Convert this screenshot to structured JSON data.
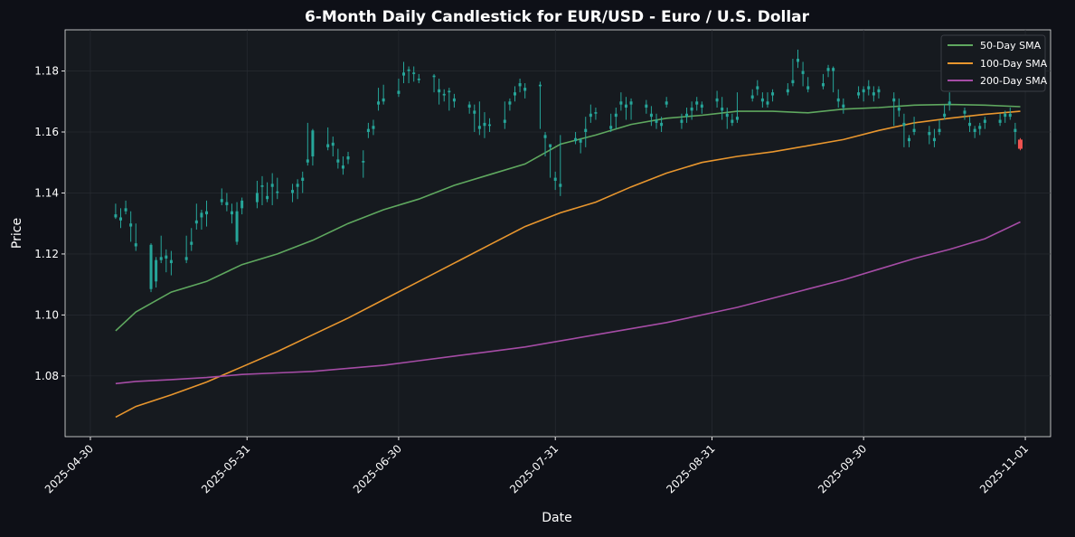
{
  "chart_data": {
    "type": "candlestick",
    "title": "6-Month Daily Candlestick for EUR/USD - Euro / U.S. Dollar",
    "xlabel": "Date",
    "ylabel": "Price",
    "xlim": [
      "2025-04-25",
      "2025-11-06"
    ],
    "ylim": [
      1.0601,
      1.1935
    ],
    "grid": true,
    "legend_position": "top-right",
    "x_ticks": [
      "2025-04-30",
      "2025-05-31",
      "2025-06-30",
      "2025-07-31",
      "2025-08-31",
      "2025-09-30",
      "2025-11-01"
    ],
    "y_ticks": [
      "1.08",
      "1.10",
      "1.12",
      "1.14",
      "1.16",
      "1.18"
    ],
    "colors": {
      "up": "#26a69a",
      "down": "#ef5350",
      "background": "#0e1017",
      "axes": "#161a1f"
    },
    "candles": [
      [
        "2025-05-05",
        1.132,
        1.1365,
        1.1315,
        1.133
      ],
      [
        "2025-05-06",
        1.131,
        1.135,
        1.1285,
        1.132
      ],
      [
        "2025-05-07",
        1.134,
        1.1375,
        1.133,
        1.135
      ],
      [
        "2025-05-08",
        1.129,
        1.134,
        1.124,
        1.13
      ],
      [
        "2025-05-09",
        1.1225,
        1.13,
        1.121,
        1.1235
      ],
      [
        "2025-05-12",
        1.1085,
        1.1235,
        1.1075,
        1.123
      ],
      [
        "2025-05-13",
        1.111,
        1.119,
        1.109,
        1.118
      ],
      [
        "2025-05-14",
        1.118,
        1.126,
        1.117,
        1.119
      ],
      [
        "2025-05-15",
        1.1185,
        1.1215,
        1.114,
        1.1195
      ],
      [
        "2025-05-16",
        1.117,
        1.121,
        1.113,
        1.118
      ],
      [
        "2025-05-19",
        1.118,
        1.126,
        1.117,
        1.119
      ],
      [
        "2025-05-20",
        1.123,
        1.1285,
        1.121,
        1.124
      ],
      [
        "2025-05-21",
        1.13,
        1.1365,
        1.128,
        1.131
      ],
      [
        "2025-05-22",
        1.132,
        1.1345,
        1.128,
        1.1335
      ],
      [
        "2025-05-23",
        1.133,
        1.1375,
        1.129,
        1.134
      ],
      [
        "2025-05-26",
        1.137,
        1.1415,
        1.136,
        1.138
      ],
      [
        "2025-05-27",
        1.136,
        1.14,
        1.134,
        1.137
      ],
      [
        "2025-05-28",
        1.133,
        1.1365,
        1.13,
        1.134
      ],
      [
        "2025-05-29",
        1.124,
        1.137,
        1.123,
        1.134
      ],
      [
        "2025-05-30",
        1.135,
        1.1385,
        1.133,
        1.1375
      ],
      [
        "2025-06-02",
        1.137,
        1.144,
        1.135,
        1.14
      ],
      [
        "2025-06-03",
        1.142,
        1.1455,
        1.136,
        1.1425
      ],
      [
        "2025-06-04",
        1.138,
        1.1435,
        1.137,
        1.139
      ],
      [
        "2025-06-05",
        1.142,
        1.1465,
        1.136,
        1.143
      ],
      [
        "2025-06-06",
        1.14,
        1.145,
        1.138,
        1.1405
      ],
      [
        "2025-06-09",
        1.14,
        1.143,
        1.137,
        1.141
      ],
      [
        "2025-06-10",
        1.142,
        1.1445,
        1.138,
        1.143
      ],
      [
        "2025-06-11",
        1.144,
        1.147,
        1.14,
        1.145
      ],
      [
        "2025-06-12",
        1.15,
        1.163,
        1.149,
        1.151
      ],
      [
        "2025-06-13",
        1.152,
        1.161,
        1.149,
        1.1605
      ],
      [
        "2025-06-16",
        1.155,
        1.1615,
        1.154,
        1.156
      ],
      [
        "2025-06-17",
        1.1555,
        1.1585,
        1.152,
        1.1565
      ],
      [
        "2025-06-18",
        1.15,
        1.1545,
        1.148,
        1.151
      ],
      [
        "2025-06-19",
        1.148,
        1.152,
        1.146,
        1.149
      ],
      [
        "2025-06-20",
        1.151,
        1.1535,
        1.1495,
        1.152
      ],
      [
        "2025-06-23",
        1.15,
        1.154,
        1.145,
        1.1505
      ],
      [
        "2025-06-24",
        1.16,
        1.163,
        1.158,
        1.161
      ],
      [
        "2025-06-25",
        1.161,
        1.164,
        1.159,
        1.162
      ],
      [
        "2025-06-26",
        1.169,
        1.1745,
        1.167,
        1.17
      ],
      [
        "2025-06-27",
        1.17,
        1.1755,
        1.169,
        1.171
      ],
      [
        "2025-06-30",
        1.1725,
        1.1775,
        1.1715,
        1.1735
      ],
      [
        "2025-07-01",
        1.1785,
        1.183,
        1.176,
        1.1795
      ],
      [
        "2025-07-02",
        1.18,
        1.1815,
        1.176,
        1.1805
      ],
      [
        "2025-07-03",
        1.179,
        1.1815,
        1.1765,
        1.1795
      ],
      [
        "2025-07-04",
        1.177,
        1.179,
        1.176,
        1.1775
      ],
      [
        "2025-07-07",
        1.178,
        1.179,
        1.173,
        1.1785
      ],
      [
        "2025-07-08",
        1.173,
        1.1775,
        1.169,
        1.174
      ],
      [
        "2025-07-09",
        1.172,
        1.174,
        1.17,
        1.1725
      ],
      [
        "2025-07-10",
        1.173,
        1.1745,
        1.167,
        1.1735
      ],
      [
        "2025-07-11",
        1.17,
        1.1725,
        1.168,
        1.171
      ],
      [
        "2025-07-14",
        1.168,
        1.17,
        1.166,
        1.169
      ],
      [
        "2025-07-15",
        1.166,
        1.169,
        1.16,
        1.167
      ],
      [
        "2025-07-16",
        1.161,
        1.17,
        1.159,
        1.162
      ],
      [
        "2025-07-17",
        1.162,
        1.1665,
        1.158,
        1.163
      ],
      [
        "2025-07-18",
        1.162,
        1.1645,
        1.16,
        1.1625
      ],
      [
        "2025-07-21",
        1.163,
        1.17,
        1.161,
        1.164
      ],
      [
        "2025-07-22",
        1.169,
        1.171,
        1.167,
        1.17
      ],
      [
        "2025-07-23",
        1.172,
        1.175,
        1.17,
        1.173
      ],
      [
        "2025-07-24",
        1.175,
        1.1775,
        1.173,
        1.176
      ],
      [
        "2025-07-25",
        1.1735,
        1.176,
        1.171,
        1.1745
      ],
      [
        "2025-07-28",
        1.175,
        1.1765,
        1.161,
        1.1755
      ],
      [
        "2025-07-29",
        1.158,
        1.16,
        1.152,
        1.159
      ],
      [
        "2025-07-30",
        1.155,
        1.156,
        1.145,
        1.156
      ],
      [
        "2025-07-31",
        1.144,
        1.147,
        1.141,
        1.145
      ],
      [
        "2025-08-01",
        1.142,
        1.159,
        1.139,
        1.143
      ],
      [
        "2025-08-04",
        1.157,
        1.16,
        1.156,
        1.158
      ],
      [
        "2025-08-05",
        1.1565,
        1.158,
        1.153,
        1.1575
      ],
      [
        "2025-08-06",
        1.16,
        1.165,
        1.155,
        1.161
      ],
      [
        "2025-08-07",
        1.165,
        1.169,
        1.163,
        1.166
      ],
      [
        "2025-08-08",
        1.166,
        1.168,
        1.164,
        1.1665
      ],
      [
        "2025-08-11",
        1.161,
        1.166,
        1.16,
        1.162
      ],
      [
        "2025-08-12",
        1.165,
        1.168,
        1.161,
        1.166
      ],
      [
        "2025-08-13",
        1.169,
        1.173,
        1.167,
        1.17
      ],
      [
        "2025-08-14",
        1.168,
        1.1715,
        1.164,
        1.169
      ],
      [
        "2025-08-15",
        1.169,
        1.171,
        1.164,
        1.17
      ],
      [
        "2025-08-18",
        1.168,
        1.1705,
        1.166,
        1.169
      ],
      [
        "2025-08-19",
        1.165,
        1.1685,
        1.162,
        1.166
      ],
      [
        "2025-08-20",
        1.163,
        1.166,
        1.161,
        1.164
      ],
      [
        "2025-08-21",
        1.162,
        1.165,
        1.16,
        1.163
      ],
      [
        "2025-08-22",
        1.169,
        1.1715,
        1.168,
        1.17
      ],
      [
        "2025-08-25",
        1.163,
        1.166,
        1.161,
        1.164
      ],
      [
        "2025-08-26",
        1.165,
        1.168,
        1.163,
        1.166
      ],
      [
        "2025-08-27",
        1.167,
        1.17,
        1.164,
        1.168
      ],
      [
        "2025-08-28",
        1.169,
        1.1715,
        1.167,
        1.17
      ],
      [
        "2025-08-29",
        1.168,
        1.17,
        1.166,
        1.169
      ],
      [
        "2025-09-01",
        1.17,
        1.1735,
        1.168,
        1.171
      ],
      [
        "2025-09-02",
        1.167,
        1.1715,
        1.164,
        1.168
      ],
      [
        "2025-09-03",
        1.165,
        1.168,
        1.161,
        1.166
      ],
      [
        "2025-09-04",
        1.163,
        1.166,
        1.162,
        1.164
      ],
      [
        "2025-09-05",
        1.164,
        1.173,
        1.163,
        1.165
      ],
      [
        "2025-09-08",
        1.171,
        1.174,
        1.17,
        1.172
      ],
      [
        "2025-09-09",
        1.174,
        1.177,
        1.172,
        1.175
      ],
      [
        "2025-09-10",
        1.17,
        1.173,
        1.168,
        1.171
      ],
      [
        "2025-09-11",
        1.169,
        1.173,
        1.168,
        1.17
      ],
      [
        "2025-09-12",
        1.172,
        1.174,
        1.17,
        1.173
      ],
      [
        "2025-09-15",
        1.173,
        1.176,
        1.172,
        1.174
      ],
      [
        "2025-09-16",
        1.176,
        1.184,
        1.175,
        1.177
      ],
      [
        "2025-09-17",
        1.183,
        1.187,
        1.181,
        1.184
      ],
      [
        "2025-09-18",
        1.179,
        1.183,
        1.175,
        1.18
      ],
      [
        "2025-09-19",
        1.174,
        1.178,
        1.173,
        1.175
      ],
      [
        "2025-09-22",
        1.175,
        1.179,
        1.174,
        1.176
      ],
      [
        "2025-09-23",
        1.18,
        1.182,
        1.178,
        1.181
      ],
      [
        "2025-09-24",
        1.18,
        1.1815,
        1.173,
        1.181
      ],
      [
        "2025-09-25",
        1.17,
        1.174,
        1.168,
        1.171
      ],
      [
        "2025-09-26",
        1.168,
        1.171,
        1.166,
        1.169
      ],
      [
        "2025-09-29",
        1.172,
        1.175,
        1.171,
        1.173
      ],
      [
        "2025-09-30",
        1.173,
        1.175,
        1.17,
        1.174
      ],
      [
        "2025-10-01",
        1.174,
        1.177,
        1.172,
        1.175
      ],
      [
        "2025-10-02",
        1.172,
        1.175,
        1.17,
        1.173
      ],
      [
        "2025-10-03",
        1.173,
        1.175,
        1.171,
        1.174
      ],
      [
        "2025-10-06",
        1.17,
        1.173,
        1.162,
        1.171
      ],
      [
        "2025-10-07",
        1.167,
        1.171,
        1.165,
        1.168
      ],
      [
        "2025-10-08",
        1.162,
        1.166,
        1.155,
        1.163
      ],
      [
        "2025-10-09",
        1.157,
        1.159,
        1.155,
        1.158
      ],
      [
        "2025-10-10",
        1.16,
        1.165,
        1.159,
        1.161
      ],
      [
        "2025-10-13",
        1.159,
        1.162,
        1.156,
        1.16
      ],
      [
        "2025-10-14",
        1.157,
        1.161,
        1.155,
        1.158
      ],
      [
        "2025-10-15",
        1.16,
        1.164,
        1.159,
        1.161
      ],
      [
        "2025-10-16",
        1.165,
        1.169,
        1.164,
        1.166
      ],
      [
        "2025-10-17",
        1.169,
        1.173,
        1.167,
        1.17
      ],
      [
        "2025-10-20",
        1.166,
        1.168,
        1.164,
        1.167
      ],
      [
        "2025-10-21",
        1.162,
        1.165,
        1.16,
        1.163
      ],
      [
        "2025-10-22",
        1.16,
        1.162,
        1.158,
        1.161
      ],
      [
        "2025-10-23",
        1.161,
        1.163,
        1.159,
        1.162
      ],
      [
        "2025-10-24",
        1.163,
        1.165,
        1.161,
        1.164
      ],
      [
        "2025-10-27",
        1.163,
        1.166,
        1.162,
        1.164
      ],
      [
        "2025-10-28",
        1.165,
        1.167,
        1.163,
        1.166
      ],
      [
        "2025-10-29",
        1.165,
        1.168,
        1.164,
        1.166
      ],
      [
        "2025-10-30",
        1.16,
        1.163,
        1.156,
        1.161
      ],
      [
        "2025-10-31",
        1.1575,
        1.158,
        1.154,
        1.1545
      ]
    ],
    "series": [
      {
        "name": "50-Day SMA",
        "color": "#5fa85f",
        "dates": [
          "2025-05-05",
          "2025-05-09",
          "2025-05-16",
          "2025-05-23",
          "2025-05-30",
          "2025-06-06",
          "2025-06-13",
          "2025-06-20",
          "2025-06-27",
          "2025-07-04",
          "2025-07-11",
          "2025-07-18",
          "2025-07-25",
          "2025-08-01",
          "2025-08-08",
          "2025-08-15",
          "2025-08-22",
          "2025-08-29",
          "2025-09-05",
          "2025-09-12",
          "2025-09-19",
          "2025-09-26",
          "2025-10-03",
          "2025-10-10",
          "2025-10-17",
          "2025-10-24",
          "2025-10-31"
        ],
        "values": [
          1.0948,
          1.101,
          1.1075,
          1.111,
          1.1165,
          1.12,
          1.1245,
          1.13,
          1.1345,
          1.138,
          1.1425,
          1.146,
          1.1495,
          1.156,
          1.159,
          1.1625,
          1.1645,
          1.1655,
          1.1668,
          1.1668,
          1.1663,
          1.1675,
          1.168,
          1.1688,
          1.169,
          1.1688,
          1.1683
        ]
      },
      {
        "name": "100-Day SMA",
        "color": "#e8962e",
        "dates": [
          "2025-05-05",
          "2025-05-09",
          "2025-05-16",
          "2025-05-23",
          "2025-05-30",
          "2025-06-06",
          "2025-06-13",
          "2025-06-20",
          "2025-06-27",
          "2025-07-04",
          "2025-07-11",
          "2025-07-18",
          "2025-07-25",
          "2025-08-01",
          "2025-08-08",
          "2025-08-15",
          "2025-08-22",
          "2025-08-29",
          "2025-09-05",
          "2025-09-12",
          "2025-09-19",
          "2025-09-26",
          "2025-10-03",
          "2025-10-10",
          "2025-10-17",
          "2025-10-24",
          "2025-10-31"
        ],
        "values": [
          1.0665,
          1.07,
          1.0738,
          1.078,
          1.083,
          1.088,
          1.0935,
          1.099,
          1.105,
          1.111,
          1.117,
          1.123,
          1.129,
          1.1335,
          1.137,
          1.142,
          1.1465,
          1.15,
          1.152,
          1.1535,
          1.1555,
          1.1575,
          1.1605,
          1.163,
          1.1645,
          1.1658,
          1.1668
        ]
      },
      {
        "name": "200-Day SMA",
        "color": "#a54ca5",
        "dates": [
          "2025-05-05",
          "2025-05-09",
          "2025-05-16",
          "2025-05-23",
          "2025-05-30",
          "2025-06-06",
          "2025-06-13",
          "2025-06-20",
          "2025-06-27",
          "2025-07-04",
          "2025-07-11",
          "2025-07-18",
          "2025-07-25",
          "2025-08-01",
          "2025-08-08",
          "2025-08-15",
          "2025-08-22",
          "2025-08-29",
          "2025-09-05",
          "2025-09-12",
          "2025-09-19",
          "2025-09-26",
          "2025-10-03",
          "2025-10-10",
          "2025-10-17",
          "2025-10-24",
          "2025-10-31"
        ],
        "values": [
          1.0775,
          1.0782,
          1.0788,
          1.0795,
          1.0805,
          1.081,
          1.0815,
          1.0825,
          1.0835,
          1.085,
          1.0865,
          1.088,
          1.0895,
          1.0915,
          1.0935,
          1.0955,
          1.0975,
          1.1,
          1.1025,
          1.1055,
          1.1085,
          1.1115,
          1.115,
          1.1185,
          1.1215,
          1.125,
          1.1305
        ]
      }
    ]
  }
}
